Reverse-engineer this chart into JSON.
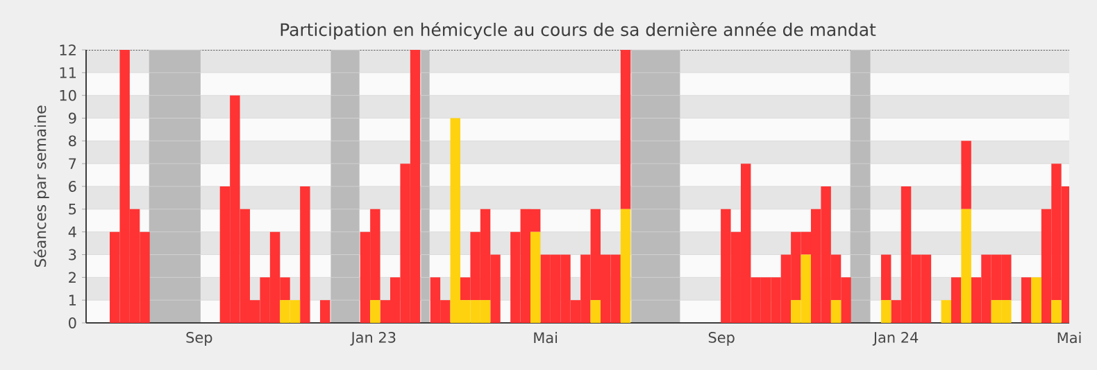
{
  "chart_data": {
    "type": "bar",
    "stacked": true,
    "title": "Participation en hémicycle au cours de sa dernière année de mandat",
    "ylabel": "Séances par semaine",
    "x": [
      "2022-07-04",
      "2022-07-11",
      "2022-07-18",
      "2022-07-25",
      "2022-08-01",
      "2022-08-08",
      "2022-08-15",
      "2022-08-22",
      "2022-08-29",
      "2022-09-05",
      "2022-09-12",
      "2022-09-19",
      "2022-09-26",
      "2022-10-03",
      "2022-10-10",
      "2022-10-17",
      "2022-10-24",
      "2022-10-31",
      "2022-11-07",
      "2022-11-14",
      "2022-11-21",
      "2022-11-28",
      "2022-12-05",
      "2022-12-12",
      "2022-12-19",
      "2022-12-26",
      "2023-01-02",
      "2023-01-09",
      "2023-01-16",
      "2023-01-23",
      "2023-01-30",
      "2023-02-06",
      "2023-02-13",
      "2023-02-20",
      "2023-02-27",
      "2023-03-06",
      "2023-03-13",
      "2023-03-20",
      "2023-03-27",
      "2023-04-03",
      "2023-04-10",
      "2023-04-17",
      "2023-04-24",
      "2023-05-01",
      "2023-05-08",
      "2023-05-15",
      "2023-05-22",
      "2023-05-29",
      "2023-06-05",
      "2023-06-12",
      "2023-06-19",
      "2023-06-26",
      "2023-07-03",
      "2023-07-10",
      "2023-07-17",
      "2023-07-24",
      "2023-07-31",
      "2023-08-07",
      "2023-08-14",
      "2023-08-21",
      "2023-08-28",
      "2023-09-04",
      "2023-09-11",
      "2023-09-18",
      "2023-09-25",
      "2023-10-02",
      "2023-10-09",
      "2023-10-16",
      "2023-10-23",
      "2023-10-30",
      "2023-11-06",
      "2023-11-13",
      "2023-11-20",
      "2023-11-27",
      "2023-12-04",
      "2023-12-11",
      "2023-12-18",
      "2023-12-25",
      "2024-01-01",
      "2024-01-08",
      "2024-01-15",
      "2024-01-22",
      "2024-01-29",
      "2024-02-05",
      "2024-02-12",
      "2024-02-19",
      "2024-02-26",
      "2024-03-04",
      "2024-03-11",
      "2024-03-18",
      "2024-03-25",
      "2024-04-01",
      "2024-04-08",
      "2024-04-15",
      "2024-04-22",
      "2024-04-29"
    ],
    "series": [
      {
        "color": "#ffd20f",
        "values": [
          0,
          0,
          0,
          0,
          0,
          0,
          0,
          0,
          0,
          0,
          0,
          0,
          0,
          0,
          0,
          0,
          0,
          1,
          1,
          0,
          0,
          0,
          0,
          0,
          0,
          0,
          1,
          0,
          0,
          0,
          0,
          0,
          0,
          0,
          9,
          1,
          1,
          1,
          0,
          0,
          0,
          0,
          4,
          0,
          0,
          0,
          0,
          0,
          1,
          0,
          0,
          5,
          0,
          0,
          0,
          0,
          0,
          0,
          0,
          0,
          0,
          0,
          0,
          0,
          0,
          0,
          0,
          0,
          1,
          3,
          0,
          0,
          1,
          0,
          0,
          0,
          0,
          1,
          0,
          0,
          0,
          0,
          0,
          1,
          0,
          5,
          0,
          0,
          1,
          1,
          0,
          0,
          2,
          0,
          1,
          0
        ]
      },
      {
        "color": "#ff3333",
        "values": [
          4,
          12,
          5,
          4,
          0,
          0,
          0,
          0,
          0,
          0,
          0,
          6,
          10,
          5,
          1,
          2,
          4,
          1,
          0,
          6,
          0,
          1,
          0,
          0,
          0,
          4,
          4,
          1,
          2,
          7,
          12,
          0,
          2,
          1,
          0,
          1,
          3,
          4,
          3,
          0,
          4,
          5,
          1,
          3,
          3,
          3,
          1,
          3,
          4,
          3,
          3,
          7,
          0,
          0,
          0,
          0,
          0,
          0,
          0,
          0,
          0,
          5,
          4,
          7,
          2,
          2,
          2,
          3,
          3,
          1,
          5,
          6,
          2,
          2,
          0,
          0,
          0,
          2,
          1,
          6,
          3,
          3,
          0,
          0,
          2,
          3,
          2,
          3,
          2,
          2,
          0,
          2,
          0,
          5,
          6,
          6
        ]
      }
    ],
    "xlim": [
      "2022-06-14",
      "2024-05-01"
    ],
    "xticks": [
      {
        "value": "2022-09-01",
        "label": "Sep"
      },
      {
        "value": "2023-01-01",
        "label": "Jan 23"
      },
      {
        "value": "2023-05-01",
        "label": "Mai"
      },
      {
        "value": "2023-09-01",
        "label": "Sep"
      },
      {
        "value": "2024-01-01",
        "label": "Jan 24"
      },
      {
        "value": "2024-05-01",
        "label": "Mai"
      }
    ],
    "ylim": [
      0,
      12
    ],
    "yticks": [
      0,
      1,
      2,
      3,
      4,
      5,
      6,
      7,
      8,
      9,
      10,
      11,
      12
    ],
    "grid": "y",
    "bands": [
      {
        "axis": "x",
        "from": "2022-07-28",
        "to": "2022-09-02",
        "color": "#bababa"
      },
      {
        "axis": "x",
        "from": "2022-12-02",
        "to": "2022-12-22",
        "color": "#bababa"
      },
      {
        "axis": "x",
        "from": "2023-02-03",
        "to": "2023-02-09",
        "color": "#bababa"
      },
      {
        "axis": "x",
        "from": "2023-06-30",
        "to": "2023-08-03",
        "color": "#bababa"
      },
      {
        "axis": "x",
        "from": "2023-11-30",
        "to": "2023-12-14",
        "color": "#bababa"
      }
    ]
  }
}
